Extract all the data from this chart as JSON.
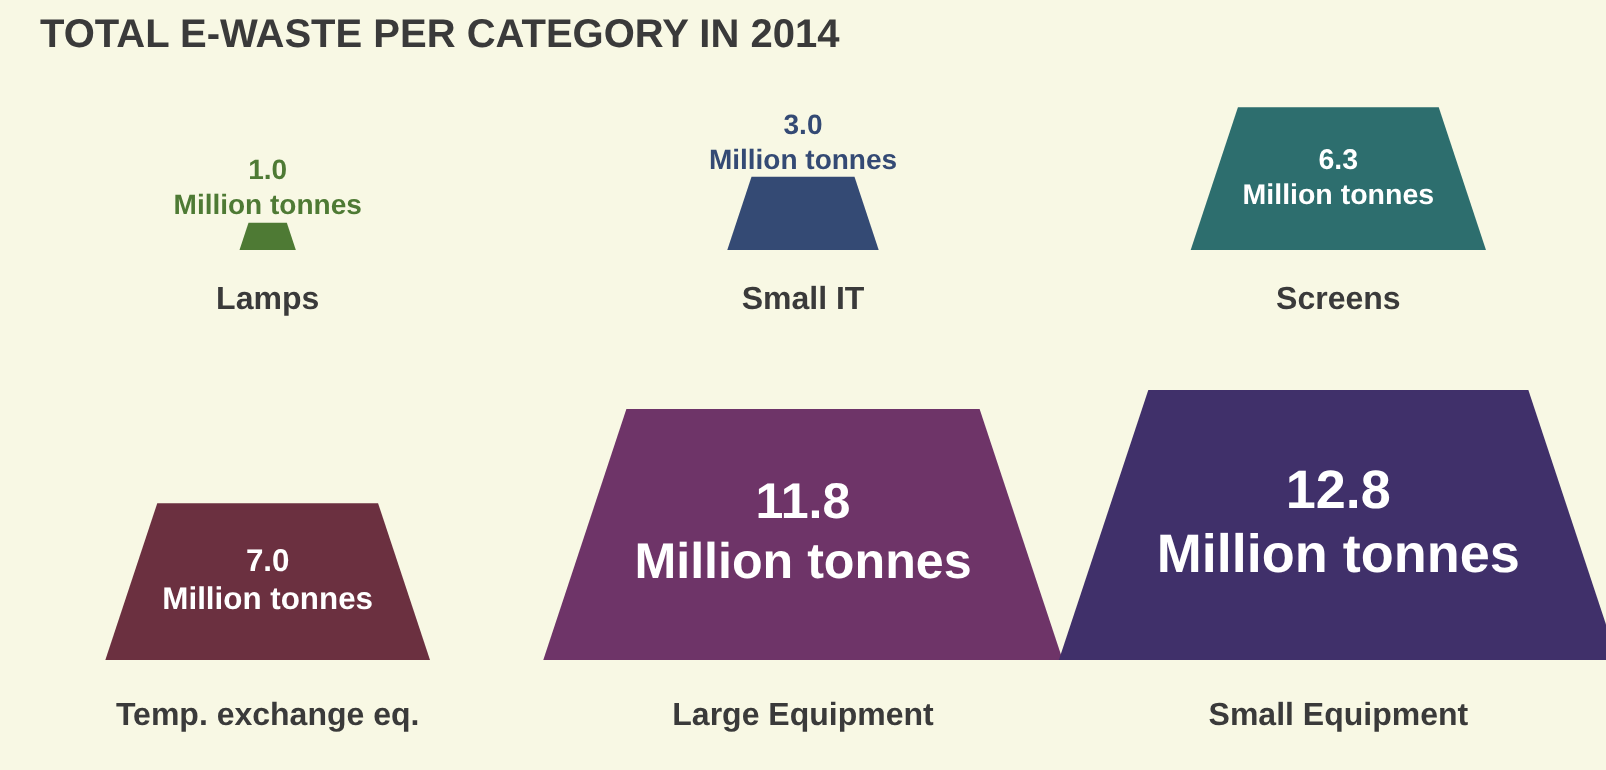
{
  "chart_data": {
    "type": "other",
    "title": "TOTAL E-WASTE PER CATEGORY IN 2014",
    "categories": [
      "Lamps",
      "Small IT",
      "Screens",
      "Temp. exchange eq.",
      "Large Equipment",
      "Small Equipment"
    ],
    "values": [
      1.0,
      3.0,
      6.3,
      7.0,
      11.8,
      12.8
    ],
    "colors": [
      "#4e7a34",
      "#344a74",
      "#2d6e6e",
      "#6b3040",
      "#6e3468",
      "#40306a"
    ],
    "value_labels": [
      "1.0 Million tonnes",
      "3.0 Million tonnes",
      "6.3 Million tonnes",
      "7.0 Million tonnes",
      "11.8 Million tonnes",
      "12.8 Million tonnes"
    ]
  }
}
